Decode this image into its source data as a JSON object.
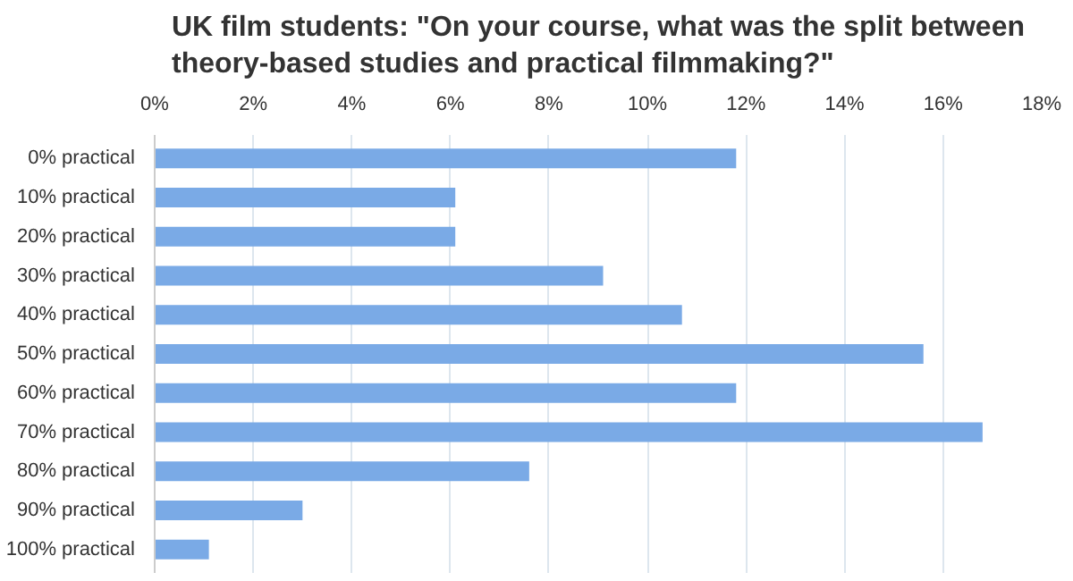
{
  "chart_data": {
    "type": "bar",
    "orientation": "horizontal",
    "title": "UK film students: \"On your course, what was the split between\ntheory-based studies and practical filmmaking?\"",
    "categories": [
      "0% practical",
      "10% practical",
      "20% practical",
      "30% practical",
      "40% practical",
      "50% practical",
      "60% practical",
      "70% practical",
      "80% practical",
      "90% practical",
      "100% practical"
    ],
    "values": [
      11.8,
      6.1,
      6.1,
      9.1,
      10.7,
      15.6,
      11.8,
      16.8,
      7.6,
      3.0,
      1.1
    ],
    "color": "#7aaae6",
    "xlim": [
      0,
      18
    ],
    "xticks": [
      {
        "value": 0,
        "label": "0%"
      },
      {
        "value": 2,
        "label": "2%"
      },
      {
        "value": 4,
        "label": "4%"
      },
      {
        "value": 6,
        "label": "6%"
      },
      {
        "value": 8,
        "label": "8%"
      },
      {
        "value": 10,
        "label": "10%"
      },
      {
        "value": 12,
        "label": "12%"
      },
      {
        "value": 14,
        "label": "14%"
      },
      {
        "value": 16,
        "label": "16%"
      },
      {
        "value": 18,
        "label": "18%"
      }
    ],
    "grid": "x"
  }
}
